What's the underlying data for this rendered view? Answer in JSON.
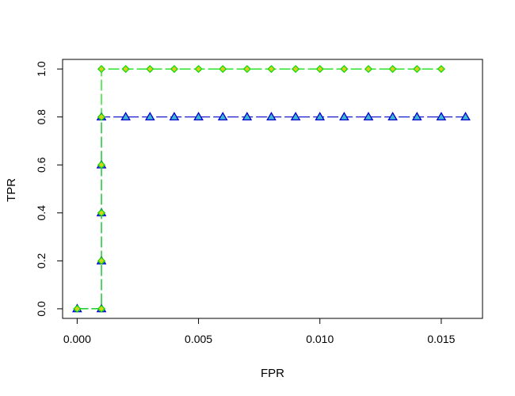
{
  "chart_data": {
    "type": "line",
    "title": "",
    "xlabel": "FPR",
    "ylabel": "TPR",
    "xlim": [
      -0.0006,
      0.0167
    ],
    "ylim": [
      -0.04,
      1.04
    ],
    "x_ticks": [
      0.0,
      0.005,
      0.01,
      0.015
    ],
    "x_tick_labels": [
      "0.000",
      "0.005",
      "0.010",
      "0.015"
    ],
    "y_ticks": [
      0.0,
      0.2,
      0.4,
      0.6,
      0.8,
      1.0
    ],
    "y_tick_labels": [
      "0.0",
      "0.2",
      "0.4",
      "0.6",
      "0.8",
      "1.0"
    ],
    "grid": false,
    "legend": "none",
    "series": [
      {
        "marker": "triangle",
        "line_color": "#0000cd",
        "line_dash": "dashed",
        "marker_fill": "#3fb8d0",
        "marker_stroke": "#0000cd",
        "points": [
          [
            0.0,
            0.0
          ],
          [
            0.001,
            0.0
          ],
          [
            0.001,
            0.2
          ],
          [
            0.001,
            0.4
          ],
          [
            0.001,
            0.6
          ],
          [
            0.001,
            0.8
          ],
          [
            0.002,
            0.8
          ],
          [
            0.003,
            0.8
          ],
          [
            0.004,
            0.8
          ],
          [
            0.005,
            0.8
          ],
          [
            0.006,
            0.8
          ],
          [
            0.007,
            0.8
          ],
          [
            0.008,
            0.8
          ],
          [
            0.009,
            0.8
          ],
          [
            0.01,
            0.8
          ],
          [
            0.011,
            0.8
          ],
          [
            0.012,
            0.8
          ],
          [
            0.013,
            0.8
          ],
          [
            0.014,
            0.8
          ],
          [
            0.015,
            0.8
          ],
          [
            0.016,
            0.8
          ]
        ]
      },
      {
        "marker": "diamond",
        "line_color": "#00dd00",
        "line_dash": "dashed",
        "marker_fill": "#d8d020",
        "marker_stroke": "#00dd00",
        "points": [
          [
            0.0,
            0.0
          ],
          [
            0.001,
            0.0
          ],
          [
            0.001,
            0.2
          ],
          [
            0.001,
            0.4
          ],
          [
            0.001,
            0.6
          ],
          [
            0.001,
            0.8
          ],
          [
            0.001,
            1.0
          ],
          [
            0.002,
            1.0
          ],
          [
            0.003,
            1.0
          ],
          [
            0.004,
            1.0
          ],
          [
            0.005,
            1.0
          ],
          [
            0.006,
            1.0
          ],
          [
            0.007,
            1.0
          ],
          [
            0.008,
            1.0
          ],
          [
            0.009,
            1.0
          ],
          [
            0.01,
            1.0
          ],
          [
            0.011,
            1.0
          ],
          [
            0.012,
            1.0
          ],
          [
            0.013,
            1.0
          ],
          [
            0.014,
            1.0
          ],
          [
            0.015,
            1.0
          ]
        ]
      }
    ]
  }
}
